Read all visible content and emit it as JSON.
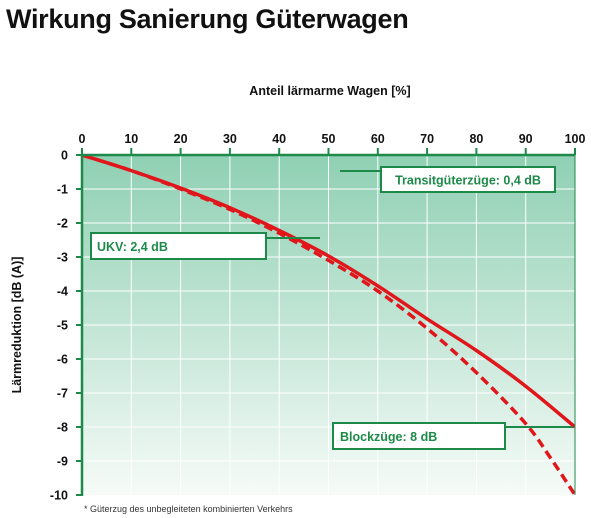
{
  "title": "Wirkung Sanierung Güterwagen",
  "footnote": "* Güterzug des unbegleiteten kombinierten Verkehrs",
  "colors": {
    "axis": "#1e8a4a",
    "curve": "#e0161b",
    "band_top": "#8fd0b3",
    "band_bottom": "#f6fbf8",
    "grid": "#ffffff"
  },
  "chart_data": {
    "type": "line",
    "xlabel": "Anteil lärmarme Wagen [%]",
    "ylabel": "Lärmreduktion [dB (A)]",
    "xlim": [
      0,
      100
    ],
    "ylim": [
      -10,
      0
    ],
    "x_ticks": [
      "0",
      "10",
      "20",
      "30",
      "40",
      "50",
      "60",
      "70",
      "80",
      "90",
      "100"
    ],
    "y_ticks": [
      "0",
      "-1",
      "-2",
      "-3",
      "-4",
      "-5",
      "-6",
      "-7",
      "-8",
      "-9",
      "-10"
    ],
    "grid": true,
    "series": [
      {
        "style": "solid",
        "x": [
          0,
          10,
          20,
          30,
          40,
          50,
          60,
          70,
          80,
          90,
          100
        ],
        "y": [
          0,
          -0.46,
          -0.97,
          -1.55,
          -2.22,
          -2.97,
          -3.85,
          -4.82,
          -5.75,
          -6.8,
          -8.0
        ]
      },
      {
        "style": "dashed",
        "x": [
          0,
          10,
          20,
          30,
          40,
          50,
          60,
          70,
          80,
          90,
          95,
          100
        ],
        "y": [
          0,
          -0.46,
          -1.0,
          -1.6,
          -2.3,
          -3.1,
          -4.0,
          -5.1,
          -6.4,
          -7.9,
          -8.9,
          -10.0
        ]
      }
    ],
    "annotations": [
      {
        "text": "Transitgüterzüge: 0,4 dB"
      },
      {
        "text": "UKV: 2,4 dB"
      },
      {
        "text": "Blockzüge: 8 dB"
      }
    ]
  }
}
